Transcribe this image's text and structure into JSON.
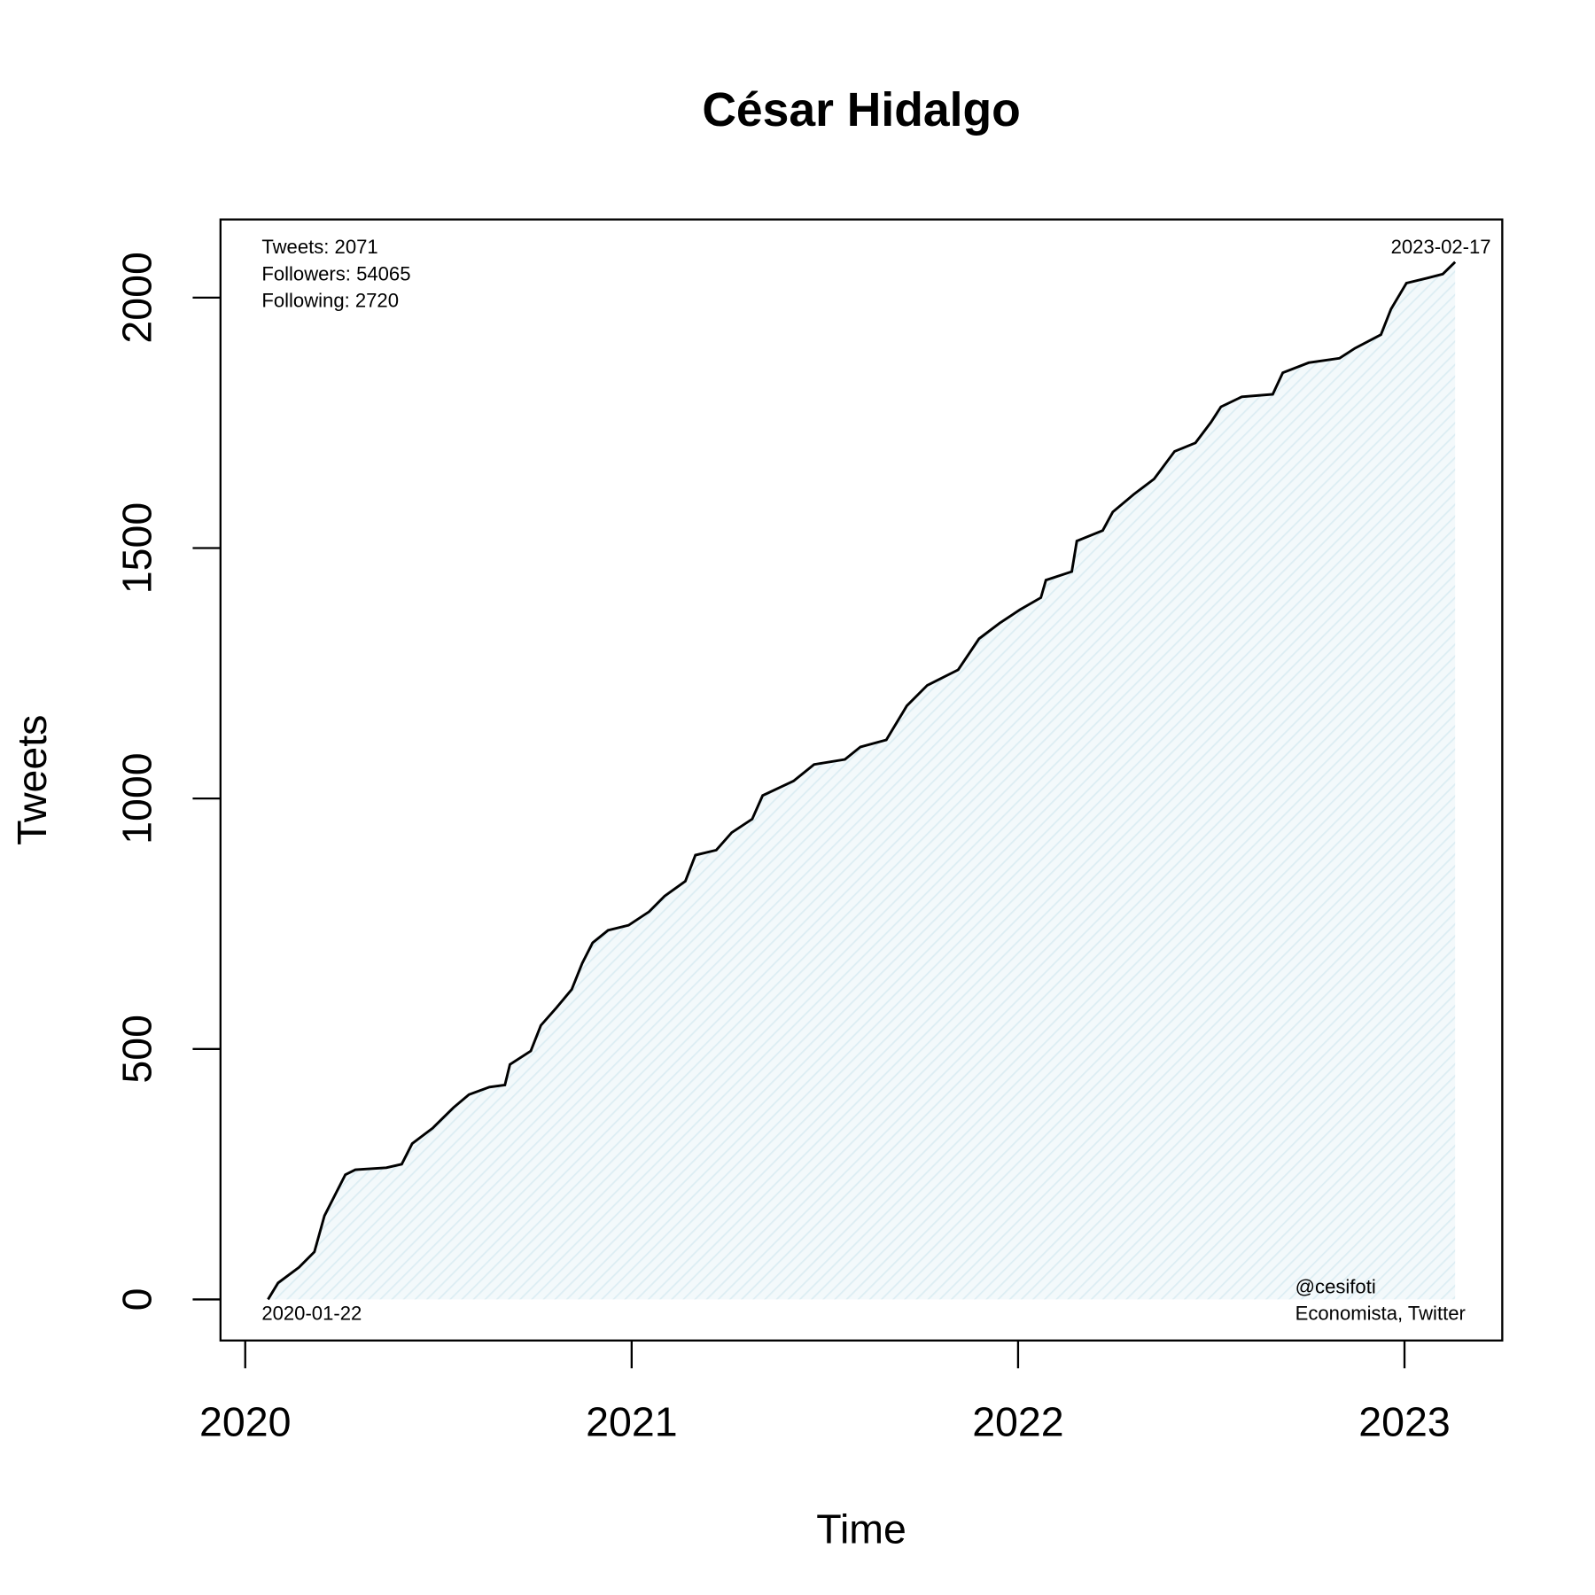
{
  "chart_data": {
    "type": "line",
    "title": "César Hidalgo",
    "x_label": "Time",
    "y_label": "Tweets",
    "annotations": {
      "tweets": "Tweets: 2071",
      "followers": "Followers: 54065",
      "following": "Following: 2720",
      "end_date": "2023-02-17",
      "start_date": "2020-01-22",
      "handle": "@cesifoti",
      "bio": "Economista, Twitter"
    },
    "xlim": [
      2019.936,
      2023.253
    ],
    "xticks": [
      2020,
      2021,
      2022,
      2023
    ],
    "ylim": [
      -82,
      2156
    ],
    "yticks": [
      0,
      500,
      1000,
      1500,
      2000
    ],
    "series": [
      {
        "name": "Tweets",
        "color": "#000000",
        "fill": "#dcedf3",
        "x": [
          2020.059,
          2020.085,
          2020.139,
          2020.179,
          2020.205,
          2020.232,
          2020.259,
          2020.285,
          2020.365,
          2020.405,
          2020.432,
          2020.485,
          2020.539,
          2020.579,
          2020.632,
          2020.672,
          2020.685,
          2020.739,
          2020.765,
          2020.805,
          2020.845,
          2020.872,
          2020.899,
          2020.939,
          2020.992,
          2021.045,
          2021.085,
          2021.139,
          2021.165,
          2021.219,
          2021.259,
          2021.312,
          2021.339,
          2021.419,
          2021.472,
          2021.552,
          2021.592,
          2021.659,
          2021.712,
          2021.765,
          2021.845,
          2021.899,
          2021.952,
          2022.005,
          2022.059,
          2022.072,
          2022.139,
          2022.152,
          2022.219,
          2022.245,
          2022.299,
          2022.352,
          2022.405,
          2022.459,
          2022.499,
          2022.525,
          2022.579,
          2022.659,
          2022.685,
          2022.752,
          2022.832,
          2022.872,
          2022.939,
          2022.965,
          2023.005,
          2023.059,
          2023.099,
          2023.131
        ],
        "values": [
          0,
          33,
          64,
          95,
          167,
          208,
          249,
          259,
          263,
          270,
          311,
          342,
          383,
          409,
          424,
          428,
          469,
          496,
          547,
          582,
          619,
          671,
          712,
          737,
          747,
          774,
          805,
          835,
          887,
          897,
          932,
          959,
          1006,
          1035,
          1068,
          1078,
          1103,
          1117,
          1185,
          1226,
          1257,
          1319,
          1350,
          1377,
          1401,
          1436,
          1453,
          1514,
          1535,
          1572,
          1607,
          1638,
          1693,
          1710,
          1751,
          1782,
          1802,
          1807,
          1850,
          1870,
          1879,
          1899,
          1926,
          1977,
          2029,
          2039,
          2047,
          2071
        ]
      }
    ]
  }
}
